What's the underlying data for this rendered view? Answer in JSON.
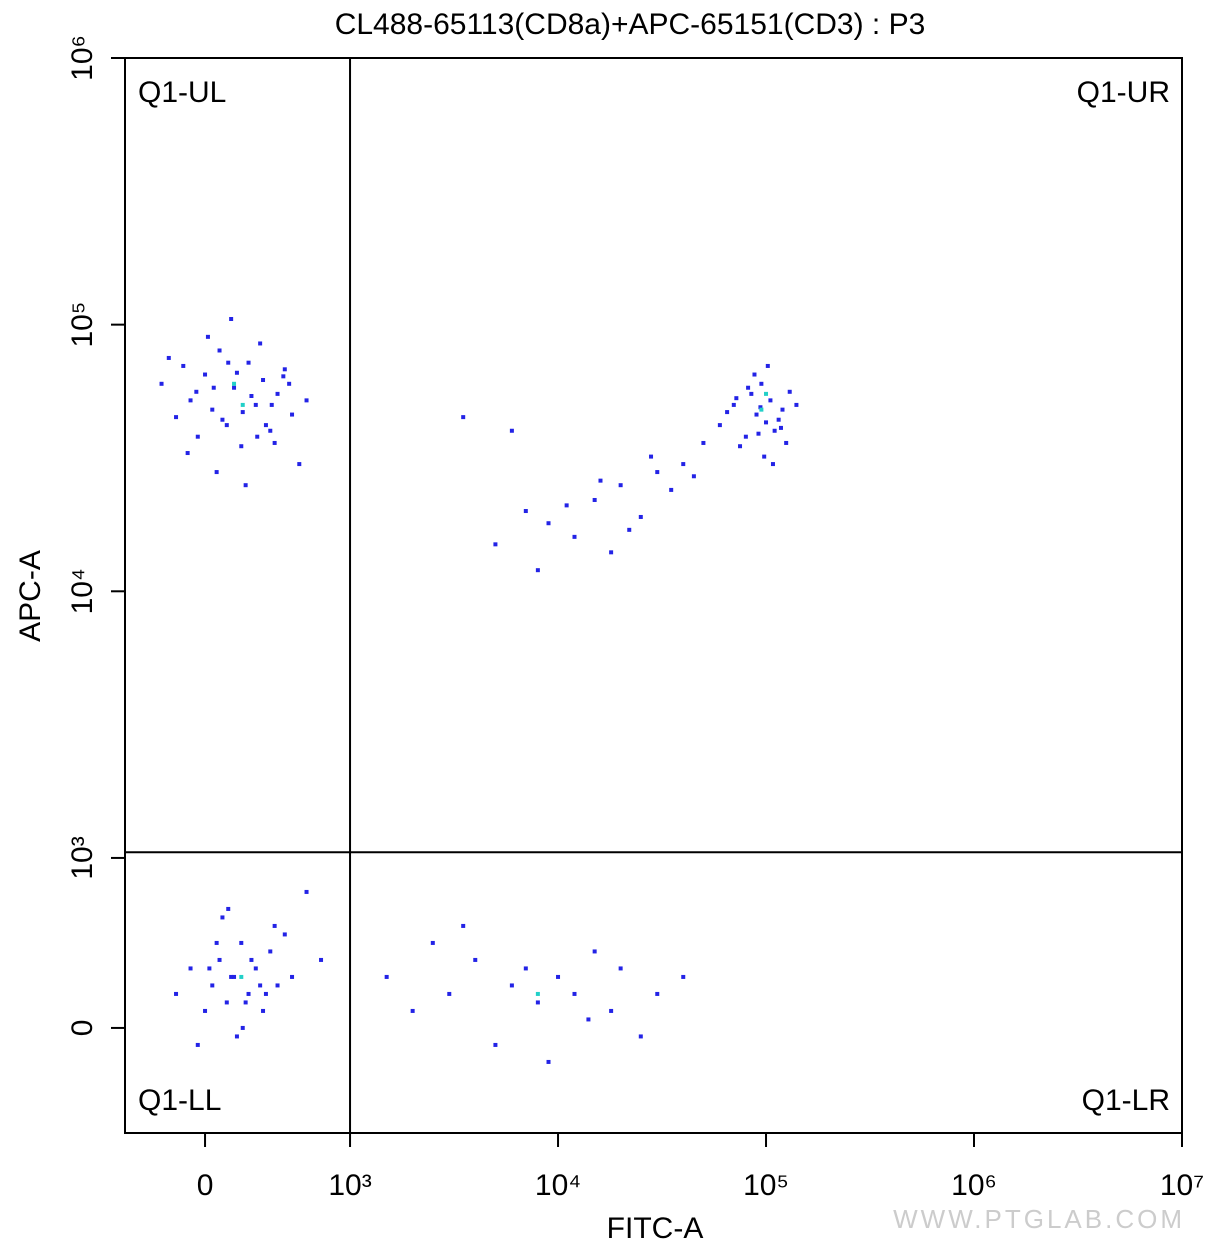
{
  "chart_data": {
    "type": "scatter",
    "title": "CL488-65113(CD8a)+APC-65151(CD3) : P3",
    "x_label": "FITC-A",
    "y_label": "APC-A",
    "scale": "biexponential",
    "xlim": [
      -552,
      10000000
    ],
    "ylim": [
      -618,
      1000000
    ],
    "xticks": [
      0,
      {
        "value": 1000,
        "label": "10³"
      },
      {
        "value": 10000,
        "label": "10⁴"
      },
      {
        "value": 100000,
        "label": "10⁵"
      },
      {
        "value": 1000000,
        "label": "10⁶"
      },
      {
        "value": 10000000,
        "label": "10⁷"
      }
    ],
    "yticks": [
      0,
      {
        "value": 1000,
        "label": "10³"
      },
      {
        "value": 10000,
        "label": "10⁴"
      },
      {
        "value": 100000,
        "label": "10⁵"
      },
      {
        "value": 1000000,
        "label": "10⁶"
      }
    ],
    "gate": {
      "x": 1000,
      "y": 1050
    },
    "quadrants": [
      "Q1-UL",
      "Q1-UR",
      "Q1-LL",
      "Q1-LR"
    ],
    "watermark": "WWW.PTGLAB.COM",
    "series": [
      {
        "color": "#2323e6",
        "x": [
          -300,
          -200,
          -150,
          -100,
          -50,
          0,
          50,
          100,
          150,
          200,
          250,
          300,
          350,
          400,
          450,
          500,
          550,
          600,
          650,
          700,
          -250,
          -120,
          20,
          80,
          180,
          280,
          380,
          480,
          580,
          120,
          220,
          320,
          420,
          60,
          160,
          260,
          360,
          460,
          -60,
          540,
          60000,
          70000,
          80000,
          85000,
          90000,
          95000,
          100000,
          105000,
          110000,
          120000,
          130000,
          75000,
          88000,
          98000,
          115000,
          65000,
          92000,
          102000,
          125000,
          140000,
          82000,
          108000,
          94000,
          72000,
          118000,
          5000,
          7000,
          9000,
          12000,
          15000,
          18000,
          20000,
          25000,
          30000,
          35000,
          40000,
          45000,
          8000,
          11000,
          22000,
          28000,
          16000,
          6000,
          3500,
          50000,
          -200,
          -100,
          0,
          50,
          100,
          150,
          200,
          250,
          300,
          350,
          400,
          450,
          500,
          550,
          600,
          -50,
          120,
          220,
          320,
          420,
          180,
          280,
          80,
          380,
          480,
          30,
          260,
          160,
          700,
          800,
          1500,
          2000,
          2500,
          3000,
          4000,
          5000,
          6000,
          7000,
          8000,
          10000,
          12000,
          15000,
          18000,
          20000,
          25000,
          30000,
          3500,
          9000,
          14000,
          40000
        ],
        "y": [
          60000,
          45000,
          70000,
          52000,
          38000,
          65000,
          48000,
          80000,
          42000,
          58000,
          35000,
          72000,
          50000,
          62000,
          40000,
          55000,
          68000,
          46000,
          30000,
          52000,
          75000,
          33000,
          90000,
          28000,
          105000,
          25000,
          85000,
          36000,
          60000,
          44000,
          66000,
          54000,
          42000,
          58000,
          72000,
          47000,
          38000,
          50000,
          56000,
          64000,
          42000,
          50000,
          38000,
          55000,
          46000,
          60000,
          43000,
          52000,
          40000,
          48000,
          56000,
          35000,
          65000,
          32000,
          44000,
          47000,
          39000,
          70000,
          36000,
          50000,
          58000,
          30000,
          49000,
          53000,
          41000,
          15000,
          20000,
          18000,
          16000,
          22000,
          14000,
          25000,
          19000,
          28000,
          24000,
          30000,
          27000,
          12000,
          21000,
          17000,
          32000,
          26000,
          40000,
          45000,
          36000,
          200,
          350,
          100,
          250,
          400,
          150,
          300,
          500,
          200,
          350,
          100,
          450,
          250,
          550,
          300,
          -100,
          650,
          -50,
          400,
          200,
          300,
          150,
          500,
          250,
          600,
          350,
          0,
          700,
          800,
          400,
          300,
          100,
          500,
          200,
          400,
          -100,
          250,
          350,
          150,
          300,
          200,
          450,
          100,
          350,
          -50,
          200,
          600,
          -200,
          50,
          300
        ]
      },
      {
        "color": "#22d0c8",
        "x": [
          200,
          260,
          95000,
          100000,
          250,
          8000
        ],
        "y": [
          60000,
          50000,
          48000,
          55000,
          300,
          200
        ]
      }
    ]
  }
}
